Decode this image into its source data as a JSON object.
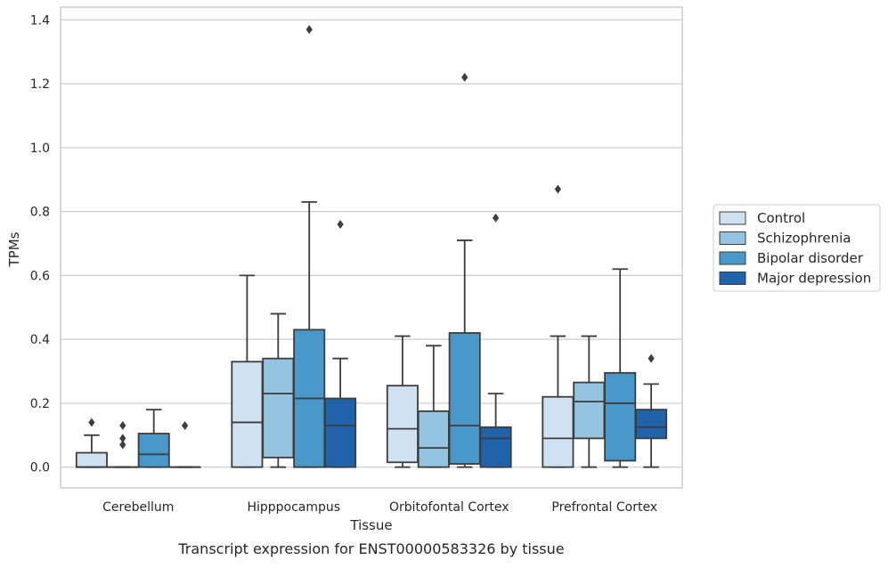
{
  "chart_data": {
    "type": "boxplot",
    "xlabel": "Tissue",
    "ylabel": "TPMs",
    "ylim": [
      -0.065,
      1.44
    ],
    "yticks": [
      "0.0",
      "0.2",
      "0.4",
      "0.6",
      "0.8",
      "1.0",
      "1.2",
      "1.4"
    ],
    "ytick_values": [
      0.0,
      0.2,
      0.4,
      0.6,
      0.8,
      1.0,
      1.2,
      1.4
    ],
    "categories": [
      "Cerebellum",
      "Hipppocampus",
      "Orbitofontal Cortex",
      "Prefrontal Cortex"
    ],
    "grid": true,
    "legend_position": "right",
    "caption": "Transcript expression for ENST00000583326 by tissue",
    "series": [
      {
        "name": "Control",
        "color": "#d0e1f2",
        "boxes": [
          {
            "whislo": 0.0,
            "q1": 0.0,
            "med": 0.0,
            "q3": 0.045,
            "whishi": 0.1,
            "fliers": [
              0.14
            ]
          },
          {
            "whislo": 0.0,
            "q1": 0.0,
            "med": 0.14,
            "q3": 0.33,
            "whishi": 0.6,
            "fliers": []
          },
          {
            "whislo": 0.0,
            "q1": 0.015,
            "med": 0.12,
            "q3": 0.255,
            "whishi": 0.41,
            "fliers": []
          },
          {
            "whislo": 0.0,
            "q1": 0.0,
            "med": 0.09,
            "q3": 0.22,
            "whishi": 0.41,
            "fliers": [
              0.87
            ]
          }
        ]
      },
      {
        "name": "Schizophrenia",
        "color": "#94c4df",
        "boxes": [
          {
            "whislo": 0.0,
            "q1": 0.0,
            "med": 0.0,
            "q3": 0.0,
            "whishi": 0.0,
            "fliers": [
              0.07,
              0.09,
              0.13
            ]
          },
          {
            "whislo": 0.0,
            "q1": 0.03,
            "med": 0.23,
            "q3": 0.34,
            "whishi": 0.48,
            "fliers": []
          },
          {
            "whislo": 0.0,
            "q1": 0.0,
            "med": 0.06,
            "q3": 0.175,
            "whishi": 0.38,
            "fliers": []
          },
          {
            "whislo": 0.0,
            "q1": 0.09,
            "med": 0.205,
            "q3": 0.265,
            "whishi": 0.41,
            "fliers": []
          }
        ]
      },
      {
        "name": "Bipolar disorder",
        "color": "#4a98c9",
        "boxes": [
          {
            "whislo": 0.0,
            "q1": 0.0,
            "med": 0.04,
            "q3": 0.105,
            "whishi": 0.18,
            "fliers": []
          },
          {
            "whislo": 0.0,
            "q1": 0.0,
            "med": 0.215,
            "q3": 0.43,
            "whishi": 0.83,
            "fliers": [
              1.37
            ]
          },
          {
            "whislo": 0.0,
            "q1": 0.01,
            "med": 0.13,
            "q3": 0.42,
            "whishi": 0.71,
            "fliers": [
              1.22
            ]
          },
          {
            "whislo": 0.0,
            "q1": 0.02,
            "med": 0.2,
            "q3": 0.295,
            "whishi": 0.62,
            "fliers": []
          }
        ]
      },
      {
        "name": "Major depression",
        "color": "#2163aa",
        "boxes": [
          {
            "whislo": 0.0,
            "q1": 0.0,
            "med": 0.0,
            "q3": 0.0,
            "whishi": 0.0,
            "fliers": [
              0.13
            ]
          },
          {
            "whislo": 0.0,
            "q1": 0.0,
            "med": 0.13,
            "q3": 0.215,
            "whishi": 0.34,
            "fliers": [
              0.76
            ]
          },
          {
            "whislo": 0.0,
            "q1": 0.0,
            "med": 0.09,
            "q3": 0.125,
            "whishi": 0.23,
            "fliers": [
              0.78
            ]
          },
          {
            "whislo": 0.0,
            "q1": 0.09,
            "med": 0.125,
            "q3": 0.18,
            "whishi": 0.26,
            "fliers": [
              0.34
            ]
          }
        ]
      }
    ]
  }
}
